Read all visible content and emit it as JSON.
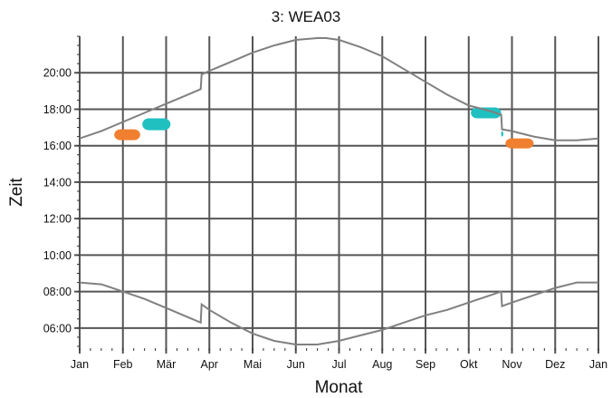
{
  "chart_data": {
    "type": "scatter",
    "title": "3: WEA03",
    "xlabel": "Monat",
    "ylabel": "Zeit",
    "x_ticks": [
      "Jan",
      "Feb",
      "Mär",
      "Apr",
      "Mai",
      "Jun",
      "Jul",
      "Aug",
      "Sep",
      "Okt",
      "Nov",
      "Dez",
      "Jan"
    ],
    "y_ticks": [
      "06:00",
      "08:00",
      "10:00",
      "12:00",
      "14:00",
      "16:00",
      "18:00",
      "20:00"
    ],
    "xlim": [
      0,
      12
    ],
    "ylim": [
      4.9,
      22
    ],
    "grid": true,
    "legend": "none",
    "colors": {
      "sun_curve": "#808080",
      "orange": "#f08030",
      "cyan": "#20c0c0",
      "grid": "#555555"
    },
    "sun_curves": [
      {
        "x": [
          0,
          0.5,
          1,
          1.5,
          2,
          2.5,
          2.8,
          2.82,
          3,
          3.5,
          4,
          4.5,
          5,
          5.5,
          5.7,
          6,
          6.5,
          7,
          7.5,
          8,
          8.5,
          9,
          9.5,
          9.75,
          9.77,
          10,
          10.5,
          11,
          11.5,
          12
        ],
        "y": [
          16.4,
          16.8,
          17.3,
          17.8,
          18.3,
          18.8,
          19.1,
          19.9,
          20.1,
          20.6,
          21.1,
          21.5,
          21.8,
          21.9,
          21.9,
          21.8,
          21.4,
          20.9,
          20.2,
          19.5,
          18.8,
          18.2,
          17.9,
          17.7,
          16.9,
          16.8,
          16.5,
          16.3,
          16.3,
          16.4
        ]
      },
      {
        "x": [
          0,
          0.5,
          1,
          1.5,
          2,
          2.5,
          2.8,
          2.82,
          3,
          3.5,
          4,
          4.5,
          5,
          5.5,
          6,
          6.5,
          7,
          7.5,
          8,
          8.5,
          9,
          9.5,
          9.75,
          9.77,
          10,
          10.5,
          11,
          11.5,
          12
        ],
        "y": [
          8.5,
          8.4,
          8.0,
          7.6,
          7.1,
          6.6,
          6.3,
          7.3,
          7.0,
          6.3,
          5.7,
          5.3,
          5.1,
          5.1,
          5.3,
          5.6,
          5.9,
          6.3,
          6.7,
          7.0,
          7.4,
          7.8,
          8.0,
          7.2,
          7.4,
          7.8,
          8.2,
          8.5,
          8.5
        ]
      }
    ],
    "shadow_clusters": [
      {
        "color": "orange",
        "x": [
          0.8,
          1.4
        ],
        "y": [
          16.3,
          16.9
        ]
      },
      {
        "color": "cyan",
        "x": [
          1.45,
          2.1
        ],
        "y": [
          16.85,
          17.5
        ]
      },
      {
        "color": "cyan",
        "x": [
          9.05,
          9.75
        ],
        "y": [
          17.5,
          18.1
        ]
      },
      {
        "color": "cyan",
        "x": [
          9.75,
          9.8
        ],
        "y": [
          16.5,
          16.8
        ]
      },
      {
        "color": "orange",
        "x": [
          9.85,
          10.5
        ],
        "y": [
          15.85,
          16.4
        ]
      }
    ]
  }
}
